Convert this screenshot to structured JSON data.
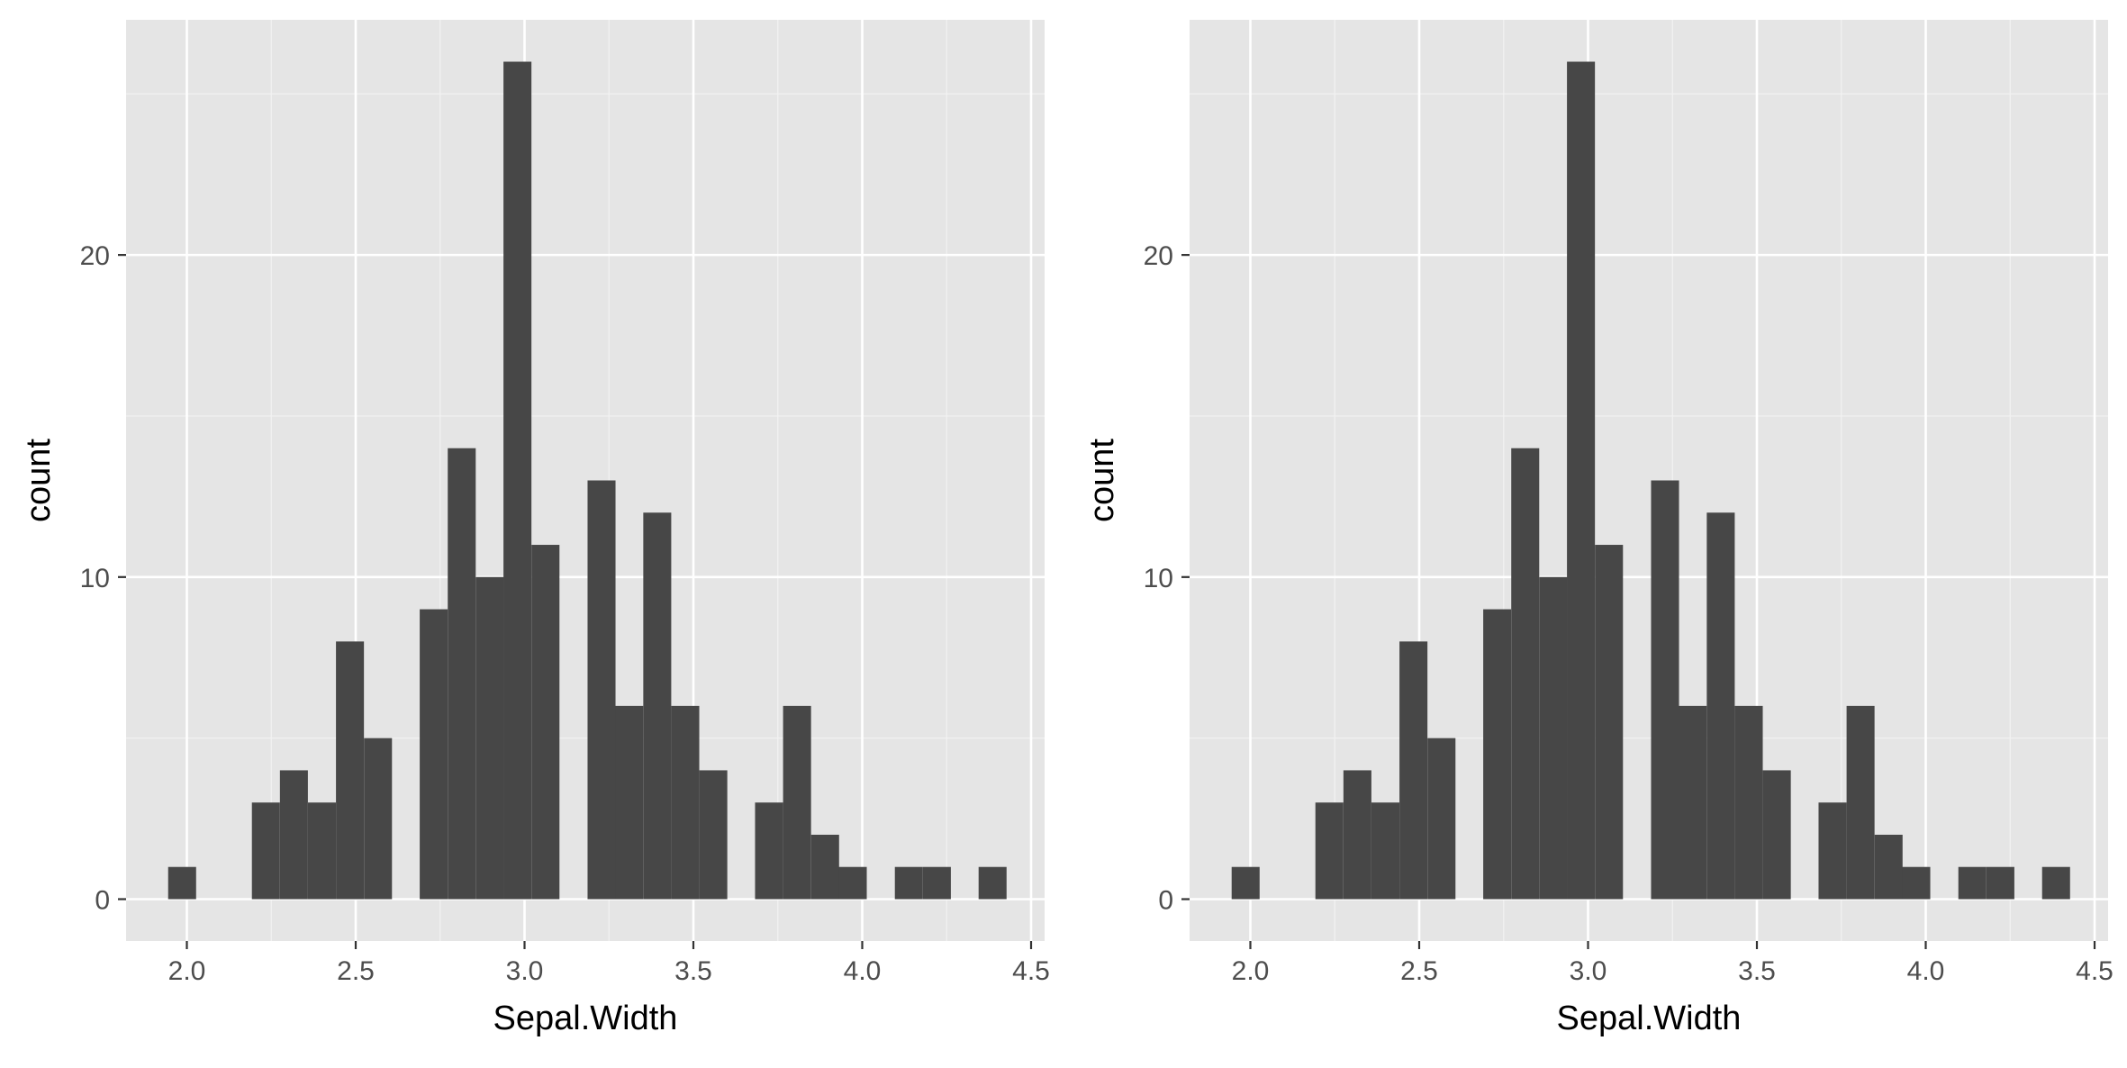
{
  "chart_data": [
    {
      "type": "bar",
      "xlabel": "Sepal.Width",
      "ylabel": "count",
      "xlim": [
        1.82,
        4.54
      ],
      "ylim": [
        -1.3,
        27.3
      ],
      "x_ticks": [
        2.0,
        2.5,
        3.0,
        3.5,
        4.0,
        4.5
      ],
      "x_tick_labels": [
        "2.0",
        "2.5",
        "3.0",
        "3.5",
        "4.0",
        "4.5"
      ],
      "y_ticks": [
        0,
        10,
        20
      ],
      "y_tick_labels": [
        "0",
        "10",
        "20"
      ],
      "bin_width": 0.0828,
      "bins": [
        {
          "x": 1.986,
          "count": 1
        },
        {
          "x": 2.069,
          "count": 0
        },
        {
          "x": 2.152,
          "count": 0
        },
        {
          "x": 2.234,
          "count": 3
        },
        {
          "x": 2.317,
          "count": 4
        },
        {
          "x": 2.4,
          "count": 3
        },
        {
          "x": 2.483,
          "count": 8
        },
        {
          "x": 2.566,
          "count": 5
        },
        {
          "x": 2.648,
          "count": 0
        },
        {
          "x": 2.731,
          "count": 9
        },
        {
          "x": 2.814,
          "count": 14
        },
        {
          "x": 2.897,
          "count": 10
        },
        {
          "x": 2.979,
          "count": 26
        },
        {
          "x": 3.062,
          "count": 11
        },
        {
          "x": 3.145,
          "count": 0
        },
        {
          "x": 3.228,
          "count": 13
        },
        {
          "x": 3.31,
          "count": 6
        },
        {
          "x": 3.393,
          "count": 12
        },
        {
          "x": 3.476,
          "count": 6
        },
        {
          "x": 3.559,
          "count": 4
        },
        {
          "x": 3.641,
          "count": 0
        },
        {
          "x": 3.724,
          "count": 3
        },
        {
          "x": 3.807,
          "count": 6
        },
        {
          "x": 3.89,
          "count": 2
        },
        {
          "x": 3.972,
          "count": 1
        },
        {
          "x": 4.055,
          "count": 0
        },
        {
          "x": 4.138,
          "count": 1
        },
        {
          "x": 4.221,
          "count": 1
        },
        {
          "x": 4.303,
          "count": 0
        },
        {
          "x": 4.386,
          "count": 1
        }
      ],
      "grid": true,
      "panel_background": "#e5e5e5",
      "bar_color": "#474747"
    },
    {
      "type": "bar",
      "xlabel": "Sepal.Width",
      "ylabel": "count",
      "xlim": [
        1.82,
        4.54
      ],
      "ylim": [
        -1.3,
        27.3
      ],
      "x_ticks": [
        2.0,
        2.5,
        3.0,
        3.5,
        4.0,
        4.5
      ],
      "x_tick_labels": [
        "2.0",
        "2.5",
        "3.0",
        "3.5",
        "4.0",
        "4.5"
      ],
      "y_ticks": [
        0,
        10,
        20
      ],
      "y_tick_labels": [
        "0",
        "10",
        "20"
      ],
      "bin_width": 0.0828,
      "bins": [
        {
          "x": 1.986,
          "count": 1
        },
        {
          "x": 2.069,
          "count": 0
        },
        {
          "x": 2.152,
          "count": 0
        },
        {
          "x": 2.234,
          "count": 3
        },
        {
          "x": 2.317,
          "count": 4
        },
        {
          "x": 2.4,
          "count": 3
        },
        {
          "x": 2.483,
          "count": 8
        },
        {
          "x": 2.566,
          "count": 5
        },
        {
          "x": 2.648,
          "count": 0
        },
        {
          "x": 2.731,
          "count": 9
        },
        {
          "x": 2.814,
          "count": 14
        },
        {
          "x": 2.897,
          "count": 10
        },
        {
          "x": 2.979,
          "count": 26
        },
        {
          "x": 3.062,
          "count": 11
        },
        {
          "x": 3.145,
          "count": 0
        },
        {
          "x": 3.228,
          "count": 13
        },
        {
          "x": 3.31,
          "count": 6
        },
        {
          "x": 3.393,
          "count": 12
        },
        {
          "x": 3.476,
          "count": 6
        },
        {
          "x": 3.559,
          "count": 4
        },
        {
          "x": 3.641,
          "count": 0
        },
        {
          "x": 3.724,
          "count": 3
        },
        {
          "x": 3.807,
          "count": 6
        },
        {
          "x": 3.89,
          "count": 2
        },
        {
          "x": 3.972,
          "count": 1
        },
        {
          "x": 4.055,
          "count": 0
        },
        {
          "x": 4.138,
          "count": 1
        },
        {
          "x": 4.221,
          "count": 1
        },
        {
          "x": 4.303,
          "count": 0
        },
        {
          "x": 4.386,
          "count": 1
        }
      ],
      "grid": true,
      "panel_background": "#e5e5e5",
      "bar_color": "#474747"
    }
  ]
}
